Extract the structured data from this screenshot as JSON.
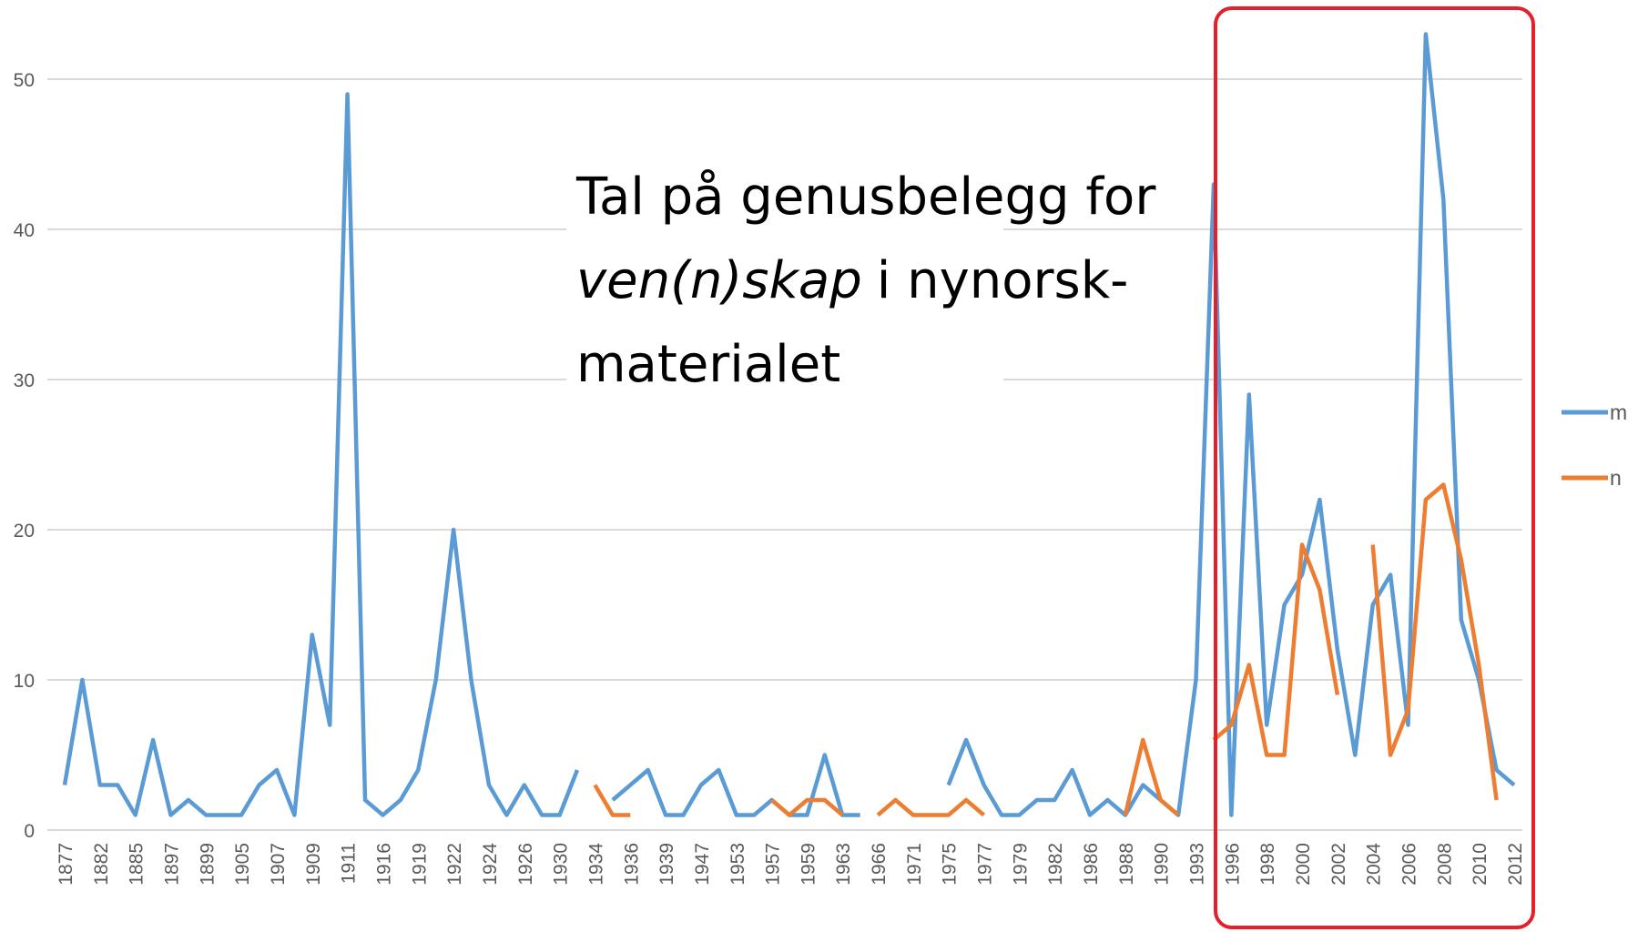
{
  "chart_data": {
    "type": "line",
    "annotation": [
      "Tal på genusbelegg for",
      "ven(n)skap",
      "i nynorsk-",
      "materialet"
    ],
    "categories": [
      "1877",
      null,
      "1882",
      null,
      "1885",
      null,
      "1897",
      null,
      "1899",
      null,
      "1905",
      null,
      "1907",
      null,
      "1909",
      null,
      "1911",
      null,
      "1916",
      null,
      "1919",
      null,
      "1922",
      null,
      "1924",
      null,
      "1926",
      null,
      "1930",
      null,
      "1934",
      null,
      "1936",
      null,
      "1939",
      null,
      "1947",
      null,
      "1953",
      null,
      "1957",
      null,
      "1959",
      null,
      "1963",
      null,
      "1966",
      null,
      "1971",
      null,
      "1975",
      null,
      "1977",
      null,
      "1979",
      null,
      "1982",
      null,
      "1986",
      null,
      "1988",
      null,
      "1990",
      null,
      "1993",
      null,
      "1996",
      null,
      "1998",
      null,
      "2000",
      null,
      "2002",
      null,
      "2004",
      null,
      "2006",
      null,
      "2008",
      null,
      "2010",
      null,
      "2012"
    ],
    "series": [
      {
        "name": "m",
        "color": "#5b9bd5",
        "values": [
          3,
          10,
          3,
          3,
          1,
          6,
          1,
          2,
          1,
          1,
          1,
          3,
          4,
          1,
          13,
          7,
          49,
          2,
          1,
          2,
          4,
          10,
          20,
          10,
          3,
          1,
          3,
          1,
          1,
          4,
          null,
          2,
          3,
          4,
          1,
          1,
          3,
          4,
          1,
          1,
          2,
          1,
          1,
          5,
          1,
          1,
          null,
          null,
          null,
          null,
          3,
          6,
          3,
          1,
          1,
          2,
          2,
          4,
          1,
          2,
          1,
          3,
          2,
          1,
          10,
          43,
          1,
          29,
          7,
          15,
          17,
          22,
          12,
          5,
          15,
          17,
          7,
          53,
          42,
          14,
          10,
          4,
          3
        ]
      },
      {
        "name": "n",
        "color": "#ed7d31",
        "values": [
          null,
          null,
          null,
          null,
          null,
          null,
          null,
          null,
          null,
          null,
          null,
          null,
          null,
          null,
          null,
          null,
          null,
          null,
          null,
          null,
          null,
          null,
          null,
          null,
          null,
          null,
          null,
          null,
          null,
          null,
          3,
          1,
          1,
          null,
          null,
          null,
          null,
          null,
          null,
          null,
          2,
          1,
          2,
          2,
          1,
          null,
          1,
          2,
          1,
          1,
          1,
          2,
          1,
          null,
          null,
          null,
          null,
          null,
          null,
          null,
          1,
          6,
          2,
          1,
          null,
          6,
          7,
          11,
          5,
          5,
          19,
          16,
          9,
          null,
          19,
          5,
          8,
          22,
          23,
          18,
          11,
          2,
          null
        ]
      }
    ],
    "ylim": [
      0,
      50
    ],
    "yticks": [
      0,
      10,
      20,
      30,
      40,
      50
    ],
    "grid": true,
    "legend": "right"
  }
}
